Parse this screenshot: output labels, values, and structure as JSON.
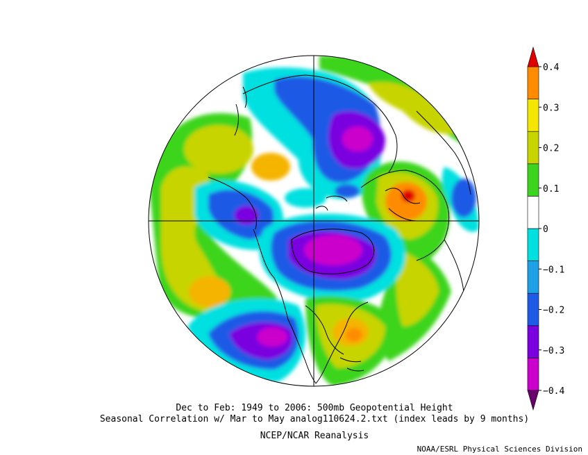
{
  "title": {
    "line1": "Dec to Feb: 1949 to 2006: 500mb Geopotential Height",
    "line2": "Seasonal Correlation w/ Mar to May analog110624.2.txt (index leads by 9 months)",
    "line3": "NCEP/NCAR Reanalysis"
  },
  "credit": "NOAA/ESRL Physical Sciences Division",
  "colorbar": {
    "levels": [
      {
        "label": "0.4",
        "color": "#e00000"
      },
      {
        "label": "0.3",
        "color": "#ff8c00"
      },
      {
        "label": "0.2",
        "color": "#f5b400"
      },
      {
        "label": "0.1",
        "color": "#c8d400"
      },
      {
        "label": "0",
        "color": "#ffffff"
      },
      {
        "label": "−0.1",
        "color": "#00e0e0"
      },
      {
        "label": "−0.2",
        "color": "#1e5ae6"
      },
      {
        "label": "−0.3",
        "color": "#7a00e0"
      },
      {
        "label": "−0.4",
        "color": "#cc00cc"
      }
    ],
    "colors_bottom_to_top": [
      "#6a006a",
      "#cc00cc",
      "#7a00e0",
      "#1e5ae6",
      "#1ea0e6",
      "#00e0e0",
      "#ffffff",
      "#3cd41e",
      "#c8d400",
      "#f5e600",
      "#ff8c00",
      "#e00000"
    ]
  },
  "map": {
    "projection": "north polar stereographic",
    "field": "correlation"
  }
}
